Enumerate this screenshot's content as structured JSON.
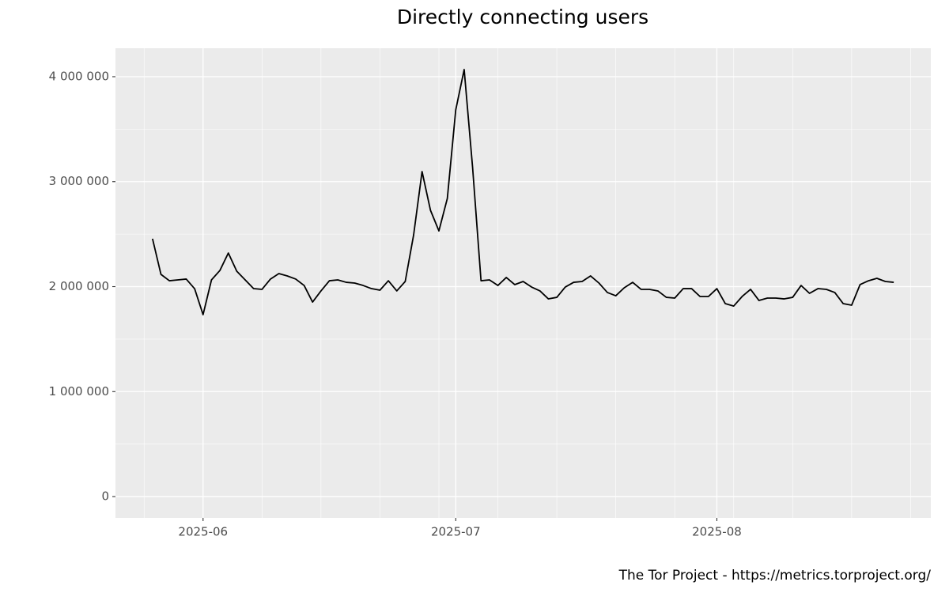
{
  "chart_data": {
    "type": "line",
    "title": "Directly connecting users",
    "caption": "The Tor Project - https://metrics.torproject.org/",
    "categories": [
      null,
      null,
      null,
      null,
      null,
      null,
      "2025-06",
      null,
      null,
      null,
      null,
      null,
      null,
      null,
      null,
      null,
      null,
      null,
      null,
      null,
      null,
      null,
      null,
      null,
      null,
      null,
      null,
      null,
      null,
      null,
      null,
      null,
      null,
      null,
      null,
      null,
      "2025-07",
      null,
      null,
      null,
      null,
      null,
      null,
      null,
      null,
      null,
      null,
      null,
      null,
      null,
      null,
      null,
      null,
      null,
      null,
      null,
      null,
      null,
      null,
      null,
      null,
      null,
      null,
      null,
      null,
      null,
      null,
      "2025-08",
      null,
      null,
      null,
      null,
      null,
      null,
      null,
      null,
      null,
      null,
      null,
      null,
      null,
      null,
      null,
      null,
      null,
      null,
      null,
      null,
      null
    ],
    "values": [
      2456000,
      2117000,
      2056000,
      2064000,
      2072000,
      1980000,
      1733000,
      2064000,
      2154000,
      2320000,
      2147000,
      2064000,
      1981000,
      1974000,
      2072000,
      2124000,
      2102000,
      2072000,
      2011000,
      1853000,
      1959000,
      2056000,
      2064000,
      2041000,
      2034000,
      2011000,
      1981000,
      1966000,
      2056000,
      1959000,
      2049000,
      2493000,
      3096000,
      2727000,
      2531000,
      2840000,
      3684000,
      4068000,
      3134000,
      2056000,
      2064000,
      2011000,
      2087000,
      2019000,
      2049000,
      1996000,
      1959000,
      1883000,
      1898000,
      1996000,
      2041000,
      2049000,
      2102000,
      2034000,
      1944000,
      1913000,
      1989000,
      2041000,
      1974000,
      1974000,
      1959000,
      1898000,
      1891000,
      1981000,
      1981000,
      1906000,
      1906000,
      1981000,
      1838000,
      1815000,
      1906000,
      1974000,
      1868000,
      1891000,
      1891000,
      1883000,
      1898000,
      2011000,
      1936000,
      1981000,
      1974000,
      1944000,
      1838000,
      1823000,
      2019000,
      2056000,
      2079000,
      2049000,
      2041000
    ],
    "color": "#000000",
    "ylim": [
      -203000,
      4271000
    ],
    "yticks": [
      0,
      {
        "value": 1000000,
        "label": "1 000 000"
      },
      {
        "value": 2000000,
        "label": "2 000 000"
      },
      {
        "value": 3000000,
        "label": "3 000 000"
      },
      {
        "value": 4000000,
        "label": "4 000 000"
      }
    ],
    "grid": true
  }
}
